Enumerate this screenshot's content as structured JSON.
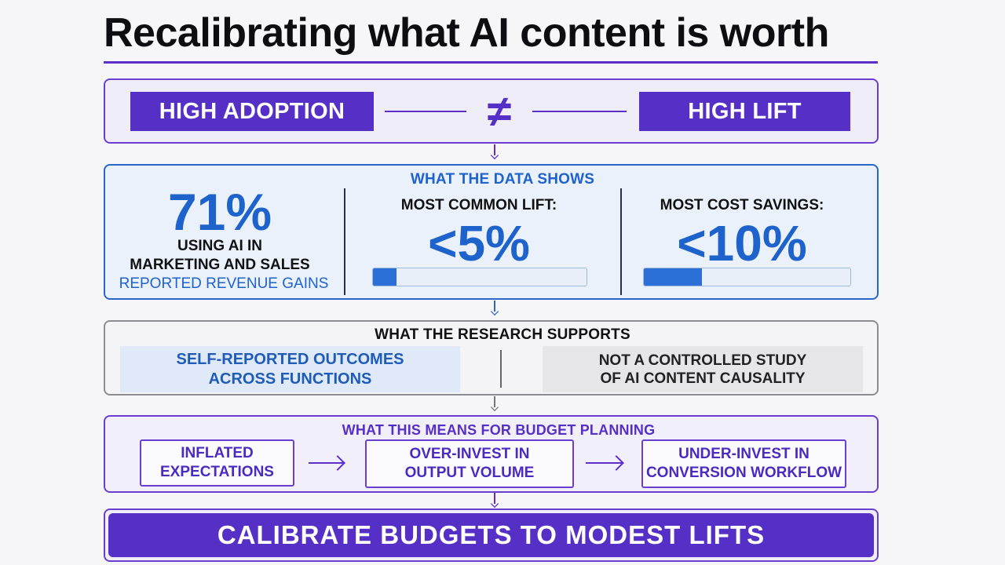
{
  "title": "Recalibrating what AI content is worth",
  "comparison": {
    "left_label": "HIGH ADOPTION",
    "symbol": "≠",
    "right_label": "HIGH LIFT"
  },
  "data_section": {
    "heading": "WHAT THE DATA SHOWS",
    "stat": {
      "value": "71%",
      "line1": "USING AI IN",
      "line2": "MARKETING AND SALES",
      "line3": "REPORTED REVENUE GAINS"
    },
    "lift": {
      "label": "MOST COMMON LIFT:",
      "value": "<5%",
      "bar_fraction": 0.11
    },
    "savings": {
      "label": "MOST COST SAVINGS:",
      "value": "<10%",
      "bar_fraction": 0.28
    }
  },
  "research_section": {
    "heading": "WHAT THE RESEARCH SUPPORTS",
    "left": {
      "line1": "SELF-REPORTED OUTCOMES",
      "line2": "ACROSS FUNCTIONS"
    },
    "right": {
      "line1": "NOT A CONTROLLED STUDY",
      "line2": "OF AI CONTENT CAUSALITY"
    }
  },
  "budget_section": {
    "heading": "WHAT THIS MEANS FOR BUDGET PLANNING",
    "steps": [
      {
        "line1": "INFLATED",
        "line2": "EXPECTATIONS"
      },
      {
        "line1": "OVER-INVEST IN",
        "line2": "OUTPUT VOLUME"
      },
      {
        "line1": "UNDER-INVEST IN",
        "line2": "CONVERSION WORKFLOW"
      }
    ]
  },
  "cta": "CALIBRATE BUDGETS TO MODEST LIFTS",
  "colors": {
    "purple": "#5630c6",
    "blue": "#1e62cc",
    "grey_border": "#8c8c92"
  }
}
